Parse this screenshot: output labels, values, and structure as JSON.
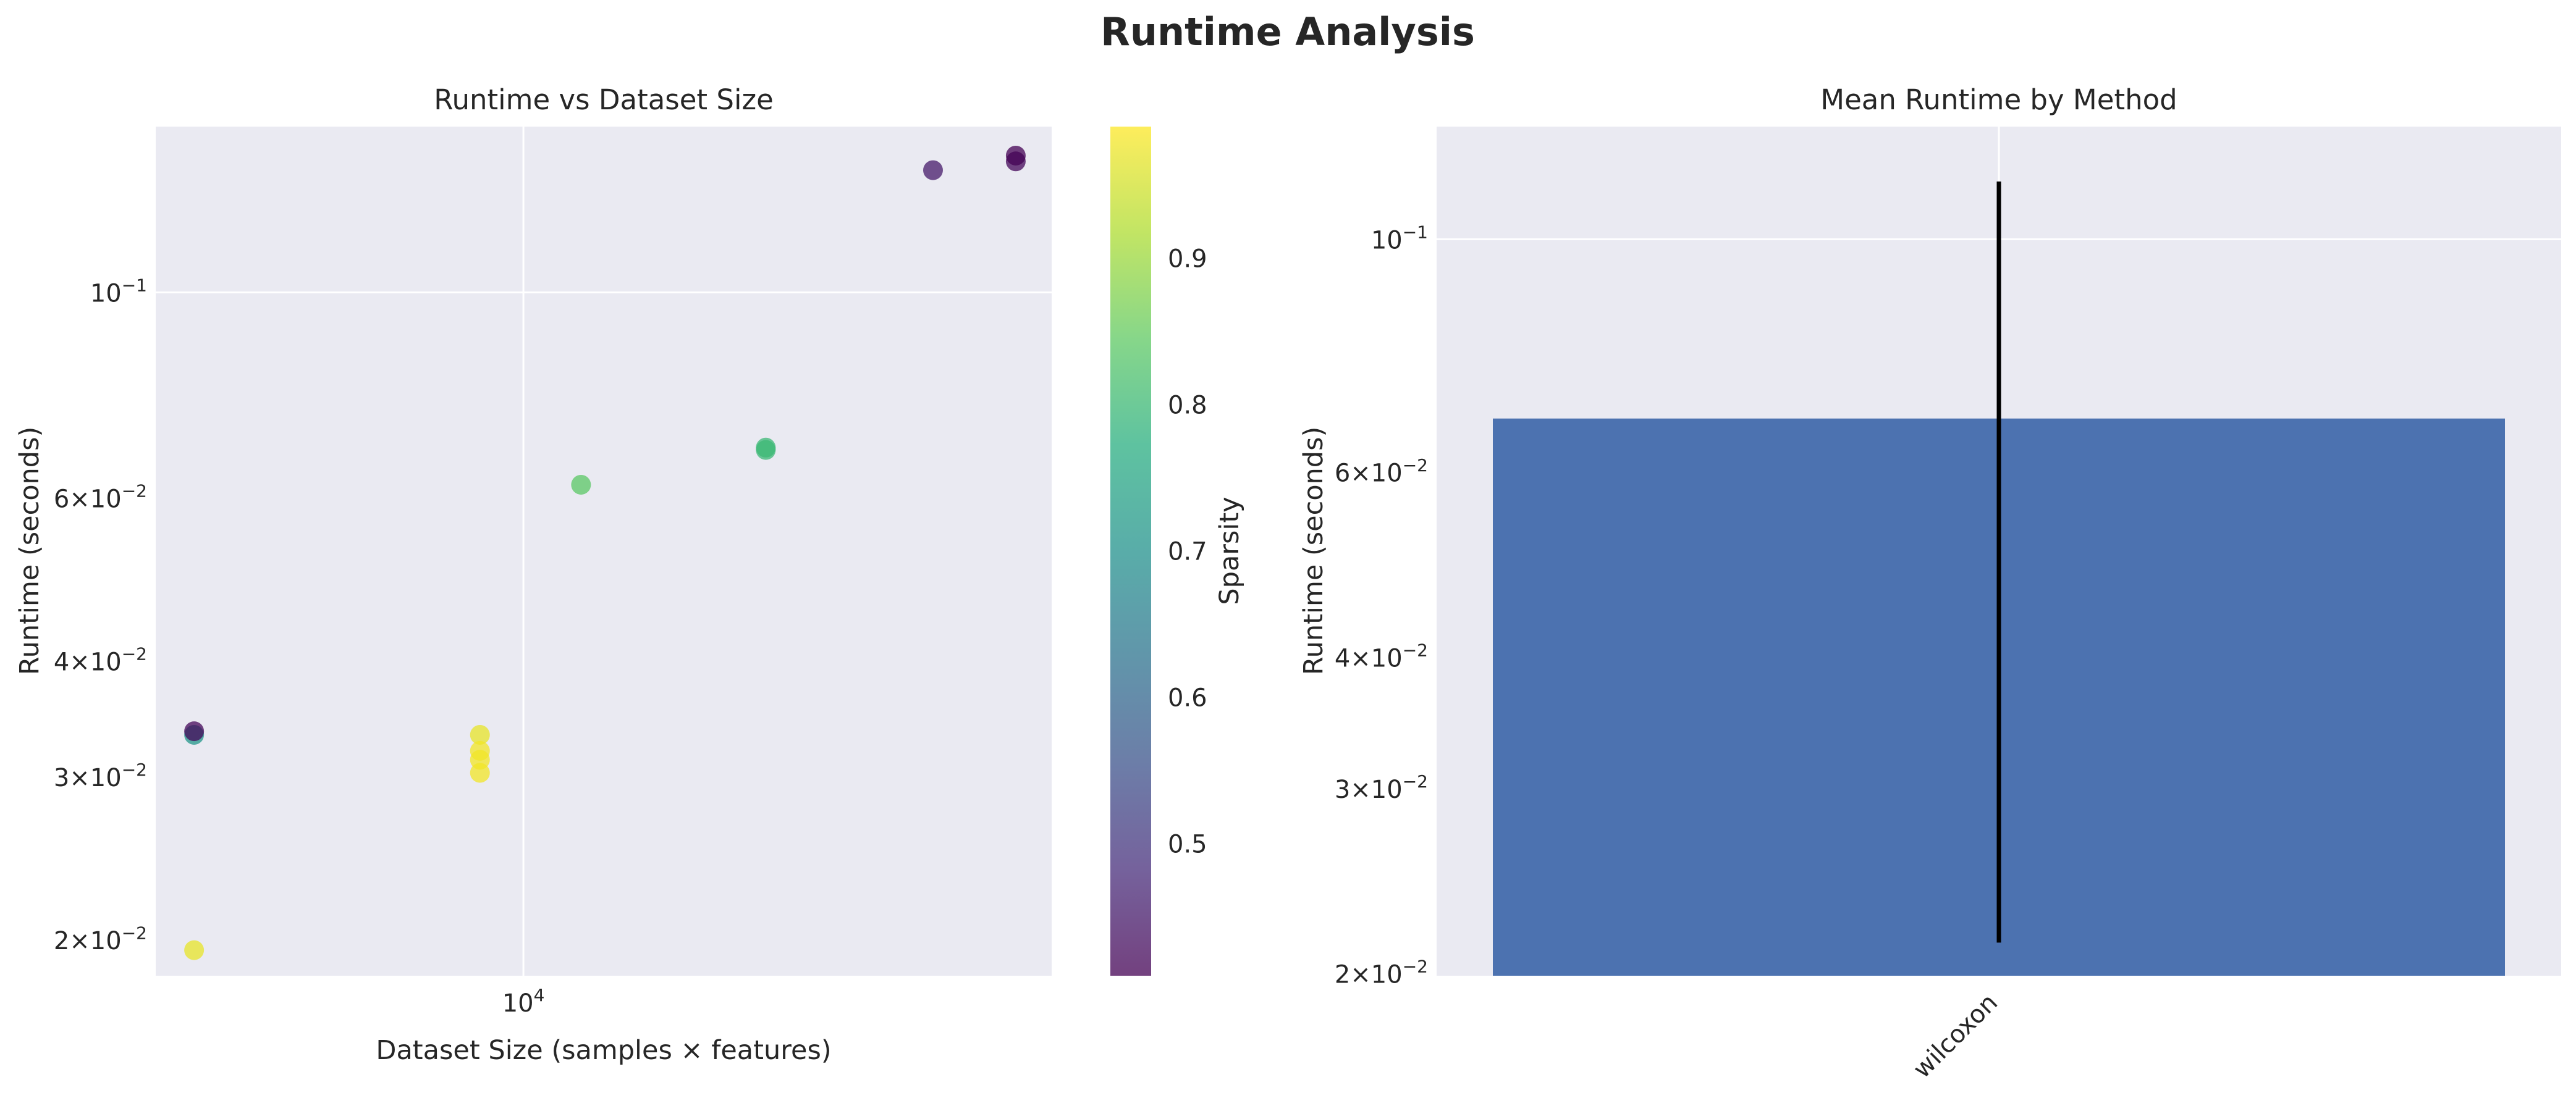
{
  "figure": {
    "title": "Runtime Analysis"
  },
  "colors": {
    "plot_background": "#EAEAF2",
    "grid": "#FFFFFF",
    "bar": "#4C72B0",
    "errorbar": "#000000",
    "text": "#262626"
  },
  "chart_data": [
    {
      "type": "scatter",
      "title": "Runtime vs Dataset Size",
      "xlabel": "Dataset Size (samples × features)",
      "ylabel": "Runtime (seconds)",
      "xscale": "log",
      "yscale": "log",
      "xlim": [
        4100,
        36000
      ],
      "ylim": [
        0.0183,
        0.151
      ],
      "x_ticks": [
        {
          "value": 10000,
          "label": "10^4"
        }
      ],
      "y_ticks": [
        {
          "value": 0.02,
          "label": "2×10^-2"
        },
        {
          "value": 0.03,
          "label": "3×10^-2"
        },
        {
          "value": 0.04,
          "label": "4×10^-2"
        },
        {
          "value": 0.06,
          "label": "6×10^-2"
        },
        {
          "value": 0.1,
          "label": "10^-1"
        }
      ],
      "grid": true,
      "colormap": "viridis",
      "colorbar": {
        "label": "Sparsity",
        "range": [
          0.41,
          0.99
        ],
        "ticks": [
          0.5,
          0.6,
          0.7,
          0.8,
          0.9
        ]
      },
      "points": [
        {
          "x": 4500,
          "y": 0.0333,
          "sparsity": 0.71
        },
        {
          "x": 4500,
          "y": 0.0336,
          "sparsity": 0.42
        },
        {
          "x": 4500,
          "y": 0.0195,
          "sparsity": 0.97
        },
        {
          "x": 9000,
          "y": 0.0333,
          "sparsity": 0.97
        },
        {
          "x": 9000,
          "y": 0.032,
          "sparsity": 0.98
        },
        {
          "x": 9000,
          "y": 0.0313,
          "sparsity": 0.98
        },
        {
          "x": 9000,
          "y": 0.0303,
          "sparsity": 0.98
        },
        {
          "x": 11500,
          "y": 0.062,
          "sparsity": 0.84
        },
        {
          "x": 18000,
          "y": 0.068,
          "sparsity": 0.8
        },
        {
          "x": 18000,
          "y": 0.0676,
          "sparsity": 0.8
        },
        {
          "x": 27000,
          "y": 0.1355,
          "sparsity": 0.45
        },
        {
          "x": 33000,
          "y": 0.1385,
          "sparsity": 0.42
        },
        {
          "x": 33000,
          "y": 0.1405,
          "sparsity": 0.41
        }
      ]
    },
    {
      "type": "bar",
      "title": "Mean Runtime by Method",
      "xlabel": "",
      "ylabel": "Runtime (seconds)",
      "yscale": "log",
      "ylim": [
        0.0199,
        0.128
      ],
      "y_ticks": [
        {
          "value": 0.02,
          "label": "2×10^-2"
        },
        {
          "value": 0.03,
          "label": "3×10^-2"
        },
        {
          "value": 0.04,
          "label": "4×10^-2"
        },
        {
          "value": 0.06,
          "label": "6×10^-2"
        },
        {
          "value": 0.1,
          "label": "10^-1"
        }
      ],
      "grid": true,
      "categories": [
        "wilcoxon"
      ],
      "values": [
        0.0675
      ],
      "error_low": [
        0.0214
      ],
      "error_high": [
        0.1135
      ]
    }
  ]
}
